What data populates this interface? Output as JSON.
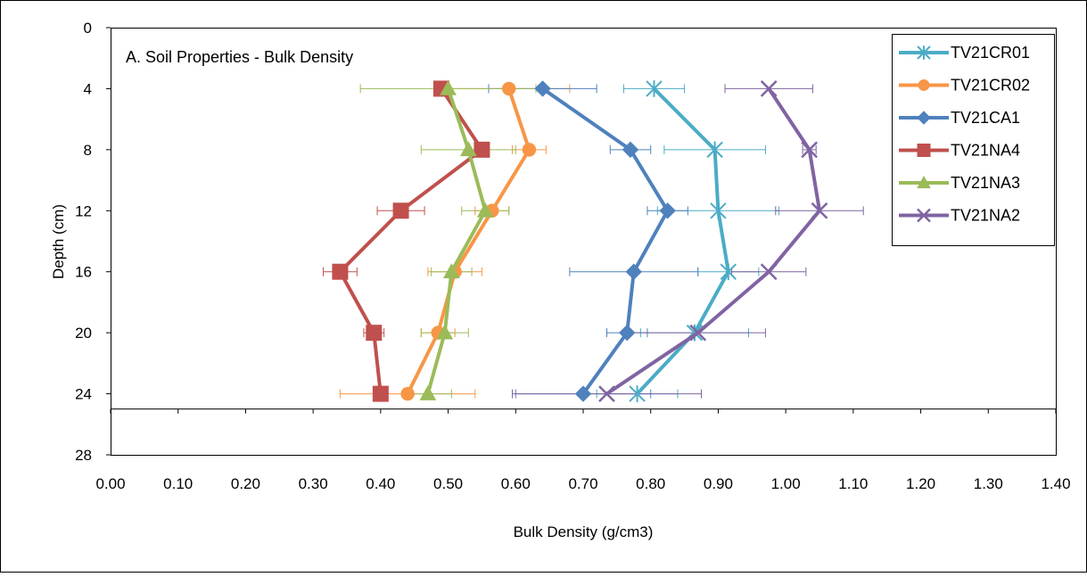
{
  "chart_data": {
    "type": "line",
    "title": "A. Soil Properties - Bulk Density",
    "xlabel": "Bulk Density (g/cm3)",
    "ylabel": "Depth (cm)",
    "xlim": [
      0,
      1.4
    ],
    "ylim": [
      0,
      28
    ],
    "y_inverted": true,
    "x_ticks": [
      "0.00",
      "0.10",
      "0.20",
      "0.30",
      "0.40",
      "0.50",
      "0.60",
      "0.70",
      "0.80",
      "0.90",
      "1.00",
      "1.10",
      "1.20",
      "1.30",
      "1.40"
    ],
    "y_ticks": [
      "0",
      "4",
      "8",
      "12",
      "16",
      "20",
      "24",
      "28"
    ],
    "x_axis_at_depth": 25,
    "grid": false,
    "legend_position": "top-right",
    "series": [
      {
        "name": "TV21CR01",
        "color": "#4BACC6",
        "marker": "star",
        "x": [
          0.805,
          0.895,
          0.9,
          0.915,
          0.865,
          0.78
        ],
        "y": [
          4,
          8,
          12,
          16,
          20,
          24
        ],
        "err": [
          0.045,
          0.075,
          0.09,
          0.045,
          0.08,
          0.06
        ]
      },
      {
        "name": "TV21CR02",
        "color": "#F79646",
        "marker": "circle",
        "x": [
          0.59,
          0.62,
          0.565,
          0.51,
          0.485,
          0.44
        ],
        "y": [
          4,
          8,
          12,
          16,
          20,
          24
        ],
        "err": [
          0.09,
          0.025,
          0.025,
          0.04,
          0.025,
          0.1
        ]
      },
      {
        "name": "TV21CA1",
        "color": "#4F81BD",
        "marker": "diamond",
        "x": [
          0.64,
          0.77,
          0.825,
          0.775,
          0.765,
          0.7
        ],
        "y": [
          4,
          8,
          12,
          16,
          20,
          24
        ],
        "err": [
          0.08,
          0.03,
          0.03,
          0.095,
          0.03,
          0.1
        ]
      },
      {
        "name": "TV21NA4",
        "color": "#C0504D",
        "marker": "square",
        "x": [
          0.49,
          0.55,
          0.43,
          0.34,
          0.39,
          0.4
        ],
        "y": [
          4,
          8,
          12,
          16,
          20,
          24
        ],
        "err": [
          0.01,
          0.01,
          0.035,
          0.025,
          0.015,
          0.005
        ]
      },
      {
        "name": "TV21NA3",
        "color": "#9BBB59",
        "marker": "triangle",
        "x": [
          0.5,
          0.53,
          0.555,
          0.505,
          0.495,
          0.47
        ],
        "y": [
          4,
          8,
          12,
          16,
          20,
          24
        ],
        "err": [
          0.13,
          0.07,
          0.035,
          0.03,
          0.035,
          0.035
        ]
      },
      {
        "name": "TV21NA2",
        "color": "#8064A2",
        "marker": "x",
        "x": [
          0.975,
          1.035,
          1.05,
          0.975,
          0.87,
          0.735
        ],
        "y": [
          4,
          8,
          12,
          16,
          20,
          24
        ],
        "err": [
          0.065,
          0.01,
          0.065,
          0.055,
          0.1,
          0.14
        ]
      }
    ]
  }
}
